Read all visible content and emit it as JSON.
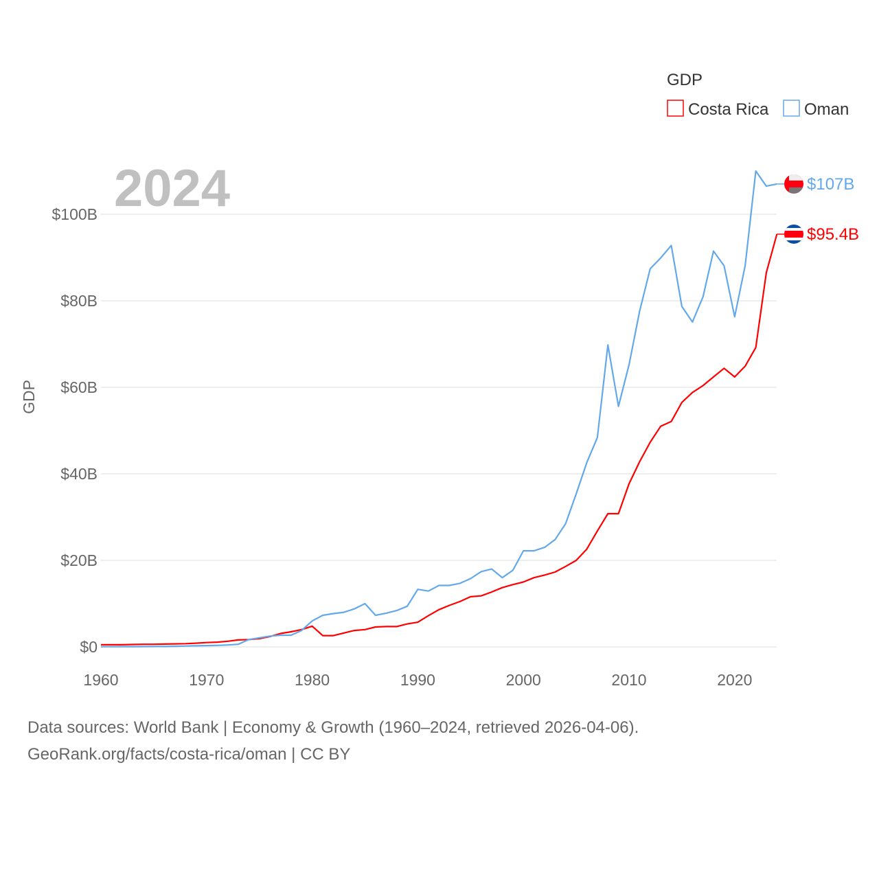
{
  "chart_data": {
    "type": "line",
    "title": "",
    "year_label": "2024",
    "xlabel": "",
    "ylabel": "GDP",
    "legend_title": "GDP",
    "legend_position": "top-right",
    "xlim": [
      1960,
      2024
    ],
    "ylim": [
      0,
      110
    ],
    "x_ticks": [
      1960,
      1970,
      1980,
      1990,
      2000,
      2010,
      2020
    ],
    "x_tick_labels": [
      "1960",
      "1970",
      "1980",
      "1990",
      "2000",
      "2010",
      "2020"
    ],
    "y_ticks": [
      0,
      20,
      40,
      60,
      80,
      100
    ],
    "y_tick_labels": [
      "$0",
      "$20B",
      "$40B",
      "$60B",
      "$80B",
      "$100B"
    ],
    "grid": true,
    "x_start": 1960,
    "series": [
      {
        "name": "Costa Rica",
        "color": "#ff0000",
        "end_label": "$95.4B",
        "flag": "costa-rica",
        "values": [
          0.5,
          0.5,
          0.5,
          0.55,
          0.6,
          0.6,
          0.65,
          0.7,
          0.75,
          0.85,
          1.0,
          1.1,
          1.3,
          1.6,
          1.7,
          1.9,
          2.4,
          3.1,
          3.5,
          4.0,
          4.8,
          2.6,
          2.6,
          3.2,
          3.8,
          4.0,
          4.6,
          4.7,
          4.7,
          5.3,
          5.7,
          7.2,
          8.6,
          9.6,
          10.5,
          11.6,
          11.8,
          12.7,
          13.7,
          14.4,
          15.0,
          16.0,
          16.6,
          17.3,
          18.6,
          20.0,
          22.6,
          26.8,
          30.8,
          30.8,
          37.7,
          42.8,
          47.3,
          51.0,
          52.1,
          56.5,
          58.8,
          60.4,
          62.4,
          64.4,
          62.4,
          64.9,
          69.2,
          86.5,
          95.4
        ]
      },
      {
        "name": "Oman",
        "color": "#63a8ea",
        "end_label": "$107B",
        "flag": "oman",
        "values": [
          0.05,
          0.05,
          0.06,
          0.07,
          0.08,
          0.09,
          0.1,
          0.15,
          0.2,
          0.25,
          0.3,
          0.35,
          0.45,
          0.6,
          1.7,
          2.1,
          2.5,
          2.7,
          2.7,
          3.8,
          6.0,
          7.3,
          7.7,
          8.0,
          8.8,
          10.0,
          7.3,
          7.8,
          8.4,
          9.4,
          13.3,
          12.9,
          14.2,
          14.2,
          14.7,
          15.8,
          17.4,
          18.0,
          16.0,
          17.7,
          22.2,
          22.2,
          23.0,
          24.8,
          28.5,
          35.4,
          42.6,
          48.4,
          69.8,
          55.6,
          65.2,
          77.6,
          87.4,
          89.9,
          92.8,
          78.7,
          75.1,
          80.9,
          91.5,
          88.1,
          76.3,
          88.2,
          110.0,
          106.5,
          107.0
        ]
      }
    ]
  },
  "footer": {
    "line1": "Data sources: World Bank | Economy & Growth (1960–2024, retrieved 2026-04-06).",
    "line2": "GeoRank.org/facts/costa-rica/oman | CC BY"
  }
}
